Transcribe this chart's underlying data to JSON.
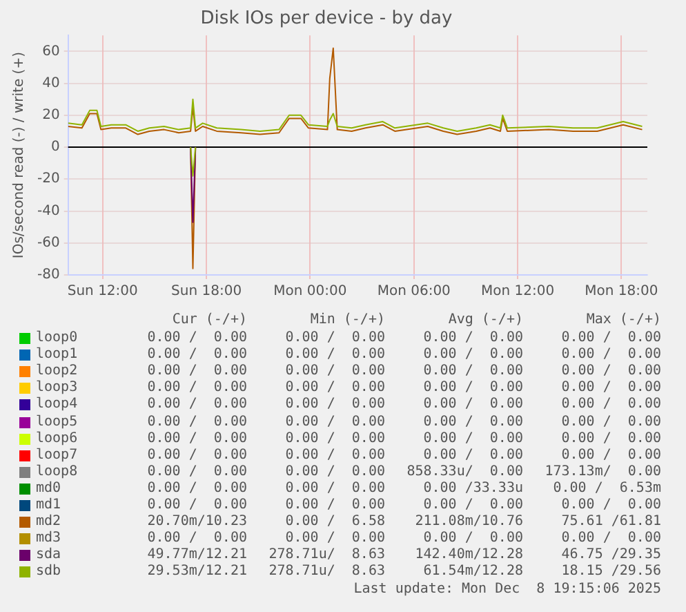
{
  "chart_data": {
    "type": "line",
    "title": "Disk IOs per device - by day",
    "ylabel": "IOs/second read (-) / write (+)",
    "x": [
      "2025-12-07T10:00",
      "2025-12-07T10:48",
      "2025-12-07T11:15",
      "2025-12-07T11:40",
      "2025-12-07T11:54",
      "2025-12-07T12:30",
      "2025-12-07T13:20",
      "2025-12-07T14:02",
      "2025-12-07T14:42",
      "2025-12-07T15:33",
      "2025-12-07T16:24",
      "2025-12-07T17:05",
      "2025-12-07T17:13",
      "2025-12-07T17:22",
      "2025-12-07T17:47",
      "2025-12-07T18:36",
      "2025-12-07T20:00",
      "2025-12-07T21:06",
      "2025-12-07T22:12",
      "2025-12-07T22:47",
      "2025-12-07T23:28",
      "2025-12-07T23:54",
      "2025-12-08T01:00",
      "2025-12-08T01:08",
      "2025-12-08T01:20",
      "2025-12-08T01:34",
      "2025-12-08T02:24",
      "2025-12-08T03:12",
      "2025-12-08T04:12",
      "2025-12-08T04:54",
      "2025-12-08T06:48",
      "2025-12-08T07:42",
      "2025-12-08T08:30",
      "2025-12-08T09:36",
      "2025-12-08T10:24",
      "2025-12-08T11:00",
      "2025-12-08T11:08",
      "2025-12-08T11:24",
      "2025-12-08T13:48",
      "2025-12-08T15:12",
      "2025-12-08T16:36",
      "2025-12-08T18:06",
      "2025-12-08T19:12"
    ],
    "xlim": [
      "2025-12-07T10:00",
      "2025-12-08T19:30"
    ],
    "xticks": [
      {
        "value": "2025-12-07T12:00",
        "label": "Sun 12:00"
      },
      {
        "value": "2025-12-07T18:00",
        "label": "Sun 18:00"
      },
      {
        "value": "2025-12-08T00:00",
        "label": "Mon 00:00"
      },
      {
        "value": "2025-12-08T06:00",
        "label": "Mon 06:00"
      },
      {
        "value": "2025-12-08T12:00",
        "label": "Mon 12:00"
      },
      {
        "value": "2025-12-08T18:00",
        "label": "Mon 18:00"
      }
    ],
    "ylim": [
      -80,
      70
    ],
    "yticks": [
      -80,
      -60,
      -40,
      -20,
      0,
      20,
      40,
      60
    ],
    "grid": true,
    "legend": "bottom",
    "marker": "none",
    "line_style": "solid",
    "ref_lines": [
      {
        "axis": "y",
        "value": 0,
        "color": "#000000"
      }
    ],
    "series": [
      {
        "name": "loop0",
        "color": "#00cc00",
        "values": [
          null,
          null,
          null,
          null,
          null,
          null,
          null,
          null,
          null,
          null,
          null,
          null,
          null,
          null,
          null,
          null,
          null,
          null,
          null,
          null,
          null,
          null,
          null,
          null,
          null,
          null,
          null,
          null,
          null,
          null,
          null,
          null,
          null,
          null,
          null,
          null,
          null,
          null,
          null,
          null,
          null,
          null,
          null
        ]
      },
      {
        "name": "loop1",
        "color": "#0066b3",
        "values": [
          null,
          null,
          null,
          null,
          null,
          null,
          null,
          null,
          null,
          null,
          null,
          null,
          null,
          null,
          null,
          null,
          null,
          null,
          null,
          null,
          null,
          null,
          null,
          null,
          null,
          null,
          null,
          null,
          null,
          null,
          null,
          null,
          null,
          null,
          null,
          null,
          null,
          null,
          null,
          null,
          null,
          null,
          null
        ]
      },
      {
        "name": "loop2",
        "color": "#ff8000",
        "values": [
          null,
          null,
          null,
          null,
          null,
          null,
          null,
          null,
          null,
          null,
          null,
          null,
          null,
          null,
          null,
          null,
          null,
          null,
          null,
          null,
          null,
          null,
          null,
          null,
          null,
          null,
          null,
          null,
          null,
          null,
          null,
          null,
          null,
          null,
          null,
          null,
          null,
          null,
          null,
          null,
          null,
          null,
          null
        ]
      },
      {
        "name": "loop3",
        "color": "#ffcc00",
        "values": [
          null,
          null,
          null,
          null,
          null,
          null,
          null,
          null,
          null,
          null,
          null,
          null,
          null,
          null,
          null,
          null,
          null,
          null,
          null,
          null,
          null,
          null,
          null,
          null,
          null,
          null,
          null,
          null,
          null,
          null,
          null,
          null,
          null,
          null,
          null,
          null,
          null,
          null,
          null,
          null,
          null,
          null,
          null
        ]
      },
      {
        "name": "loop4",
        "color": "#330099",
        "values": [
          null,
          null,
          null,
          null,
          null,
          null,
          null,
          null,
          null,
          null,
          null,
          null,
          null,
          null,
          null,
          null,
          null,
          null,
          null,
          null,
          null,
          null,
          null,
          null,
          null,
          null,
          null,
          null,
          null,
          null,
          null,
          null,
          null,
          null,
          null,
          null,
          null,
          null,
          null,
          null,
          null,
          null,
          null
        ]
      },
      {
        "name": "loop5",
        "color": "#990099",
        "values": [
          null,
          null,
          null,
          null,
          null,
          null,
          null,
          null,
          null,
          null,
          null,
          null,
          null,
          null,
          null,
          null,
          null,
          null,
          null,
          null,
          null,
          null,
          null,
          null,
          null,
          null,
          null,
          null,
          null,
          null,
          null,
          null,
          null,
          null,
          null,
          null,
          null,
          null,
          null,
          null,
          null,
          null,
          null
        ]
      },
      {
        "name": "loop6",
        "color": "#ccff00",
        "values": [
          null,
          null,
          null,
          null,
          null,
          null,
          null,
          null,
          null,
          null,
          null,
          null,
          null,
          null,
          null,
          null,
          null,
          null,
          null,
          null,
          null,
          null,
          null,
          null,
          null,
          null,
          null,
          null,
          null,
          null,
          null,
          null,
          null,
          null,
          null,
          null,
          null,
          null,
          null,
          null,
          null,
          null,
          null
        ]
      },
      {
        "name": "loop7",
        "color": "#ff0000",
        "values": [
          null,
          null,
          null,
          null,
          null,
          null,
          null,
          null,
          null,
          null,
          null,
          null,
          null,
          null,
          null,
          null,
          null,
          null,
          null,
          null,
          null,
          null,
          null,
          null,
          null,
          null,
          null,
          null,
          null,
          null,
          null,
          null,
          null,
          null,
          null,
          null,
          null,
          null,
          null,
          null,
          null,
          null,
          null
        ]
      },
      {
        "name": "loop8",
        "color": "#808080",
        "values": [
          null,
          null,
          null,
          null,
          null,
          null,
          null,
          null,
          null,
          null,
          null,
          null,
          null,
          null,
          null,
          null,
          null,
          null,
          null,
          null,
          null,
          null,
          null,
          null,
          null,
          null,
          null,
          null,
          null,
          null,
          null,
          null,
          null,
          null,
          null,
          null,
          null,
          null,
          null,
          null,
          null,
          null,
          null
        ]
      },
      {
        "name": "md0",
        "color": "#008f00",
        "values": [
          null,
          null,
          null,
          null,
          null,
          null,
          null,
          null,
          null,
          null,
          null,
          null,
          null,
          null,
          null,
          null,
          null,
          null,
          null,
          null,
          null,
          null,
          null,
          null,
          null,
          null,
          null,
          null,
          null,
          null,
          null,
          null,
          null,
          null,
          null,
          null,
          null,
          null,
          null,
          null,
          null,
          null,
          null
        ]
      },
      {
        "name": "md1",
        "color": "#00487d",
        "values": [
          null,
          null,
          null,
          null,
          null,
          null,
          null,
          null,
          null,
          null,
          null,
          null,
          null,
          null,
          null,
          null,
          null,
          null,
          null,
          null,
          null,
          null,
          null,
          null,
          null,
          null,
          null,
          null,
          null,
          null,
          null,
          null,
          null,
          null,
          null,
          null,
          null,
          null,
          null,
          null,
          null,
          null,
          null
        ]
      },
      {
        "name": "md2",
        "color": "#b35a00",
        "values": [
          13,
          12,
          21,
          21,
          11,
          12,
          12,
          8,
          10,
          11,
          9,
          10,
          25,
          10,
          13,
          10,
          9,
          8,
          9,
          18,
          18,
          12,
          11,
          43,
          62,
          11,
          10,
          12,
          14,
          10,
          13,
          10,
          8,
          10,
          12,
          10,
          18,
          10,
          11,
          10,
          10,
          14,
          11
        ]
      },
      {
        "color": "#b35a00",
        "values": [
          null,
          null,
          null,
          null,
          null,
          null,
          null,
          null,
          null,
          null,
          null,
          0,
          -76,
          0,
          null,
          null,
          null,
          null,
          null,
          null,
          null,
          null,
          null,
          null,
          null,
          null,
          null,
          null,
          null,
          null,
          null,
          null,
          null,
          null,
          null,
          null,
          null,
          null,
          null,
          null,
          null,
          null,
          null
        ]
      },
      {
        "name": "md3",
        "color": "#b38f00",
        "values": [
          null,
          null,
          null,
          null,
          null,
          null,
          null,
          null,
          null,
          null,
          null,
          null,
          null,
          null,
          null,
          null,
          null,
          null,
          null,
          null,
          null,
          null,
          null,
          null,
          null,
          null,
          null,
          null,
          null,
          null,
          null,
          null,
          null,
          null,
          null,
          null,
          null,
          null,
          null,
          null,
          null,
          null,
          null
        ]
      },
      {
        "name": "sda",
        "color": "#6b006b",
        "values": [
          null,
          null,
          null,
          null,
          null,
          null,
          null,
          null,
          null,
          null,
          null,
          0,
          -47,
          0,
          null,
          null,
          null,
          null,
          null,
          null,
          null,
          null,
          null,
          null,
          null,
          null,
          null,
          null,
          null,
          null,
          null,
          null,
          null,
          null,
          null,
          null,
          null,
          null,
          null,
          null,
          null,
          null,
          null
        ]
      },
      {
        "name": "sdb",
        "color": "#8fb300",
        "values": [
          15,
          14,
          23,
          23,
          13,
          14,
          14,
          10,
          12,
          13,
          11,
          12,
          30,
          12,
          15,
          12,
          11,
          10,
          11,
          20,
          20,
          14,
          13,
          17,
          21,
          13,
          12,
          14,
          16,
          12,
          15,
          12,
          10,
          12,
          14,
          12,
          20,
          12,
          13,
          12,
          12,
          16,
          13
        ]
      },
      {
        "color": "#8fb300",
        "values": [
          null,
          null,
          null,
          null,
          null,
          null,
          null,
          null,
          null,
          null,
          null,
          0,
          -18,
          0,
          null,
          null,
          null,
          null,
          null,
          null,
          null,
          null,
          null,
          null,
          null,
          null,
          null,
          null,
          null,
          null,
          null,
          null,
          null,
          null,
          null,
          null,
          null,
          null,
          null,
          null,
          null,
          null,
          null
        ]
      }
    ],
    "annotations": [
      "Cur (-/+)",
      "Min (-/+)",
      "Avg (-/+)",
      "Max (-/+)",
      "0.00 /  0.00",
      "0.00 /  0.00",
      "0.00 /  0.00",
      "0.00 /  0.00",
      "0.00 /  0.00",
      "0.00 /  0.00",
      "0.00 /  0.00",
      "0.00 /  0.00",
      "0.00 /  0.00",
      "0.00 /  0.00",
      "0.00 /  0.00",
      "0.00 /  0.00",
      "0.00 /  0.00",
      "0.00 /  0.00",
      "0.00 /  0.00",
      "0.00 /  0.00",
      "0.00 /  0.00",
      "0.00 /  0.00",
      "0.00 /  0.00",
      "0.00 /  0.00",
      "0.00 /  0.00",
      "0.00 /  0.00",
      "0.00 /  0.00",
      "0.00 /  0.00",
      "0.00 /  0.00",
      "0.00 /  0.00",
      "0.00 /  0.00",
      "0.00 /  0.00",
      "0.00 /  0.00",
      "0.00 /  0.00",
      "0.00 /  0.00",
      "0.00 /  0.00",
      "0.00 /  0.00",
      "0.00 /  0.00",
      "858.33u/  0.00",
      "173.13m/  0.00",
      "0.00 /  0.00",
      "0.00 /  0.00",
      "0.00 /33.33u",
      "0.00 /  6.53m",
      "0.00 /  0.00",
      "0.00 /  0.00",
      "0.00 /  0.00",
      "0.00 /  0.00",
      "20.70m/10.23",
      "0.00 /  6.58",
      "211.08m/10.76",
      "75.61 /61.81",
      "0.00 /  0.00",
      "0.00 /  0.00",
      "0.00 /  0.00",
      "0.00 /  0.00",
      "49.77m/12.21",
      "278.71u/  8.63",
      "142.40m/12.28",
      "46.75 /29.35",
      "29.53m/12.21",
      "278.71u/  8.63",
      "61.54m/12.28",
      "18.15 /29.56",
      "Last update: Mon Dec  8 19:15:06 2025"
    ]
  }
}
